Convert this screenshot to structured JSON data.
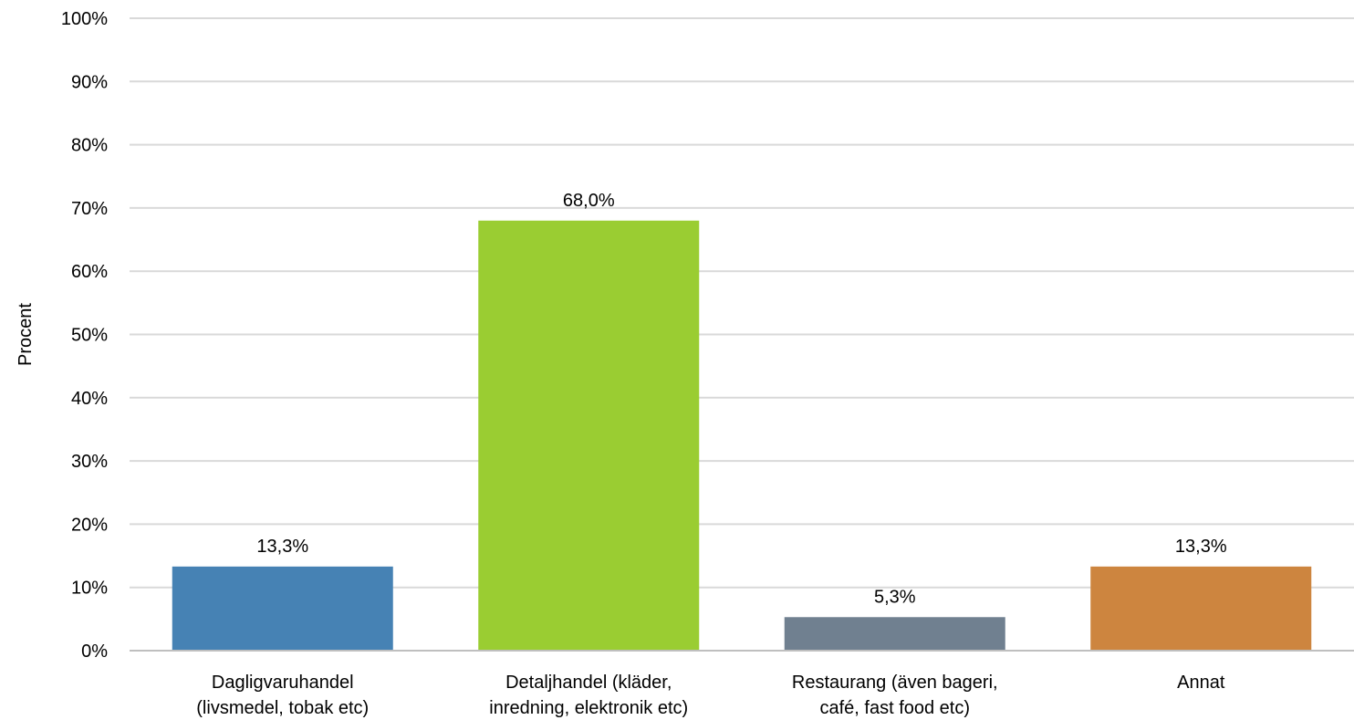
{
  "chart_data": {
    "type": "bar",
    "title": "",
    "xlabel": "",
    "ylabel": "Procent",
    "ylim": [
      0,
      100
    ],
    "y_ticks": [
      0,
      10,
      20,
      30,
      40,
      50,
      60,
      70,
      80,
      90,
      100
    ],
    "y_tick_labels": [
      "0%",
      "10%",
      "20%",
      "30%",
      "40%",
      "50%",
      "60%",
      "70%",
      "80%",
      "90%",
      "100%"
    ],
    "grid": true,
    "legend": "none",
    "categories": [
      [
        "Dagligvaruhandel",
        "(livsmedel, tobak etc)"
      ],
      [
        "Detaljhandel (kläder,",
        "inredning, elektronik etc)"
      ],
      [
        "Restaurang (även bageri,",
        "café, fast food etc)"
      ],
      [
        "Annat"
      ]
    ],
    "values": [
      13.3,
      68.0,
      5.3,
      13.3
    ],
    "data_labels": [
      "13,3%",
      "68,0%",
      "5,3%",
      "13,3%"
    ],
    "colors": [
      "#4682B4",
      "#9ACD32",
      "#708090",
      "#CD853F"
    ],
    "gridline_color": "#D9D9D9",
    "axis_color": "#BFBFBF"
  }
}
